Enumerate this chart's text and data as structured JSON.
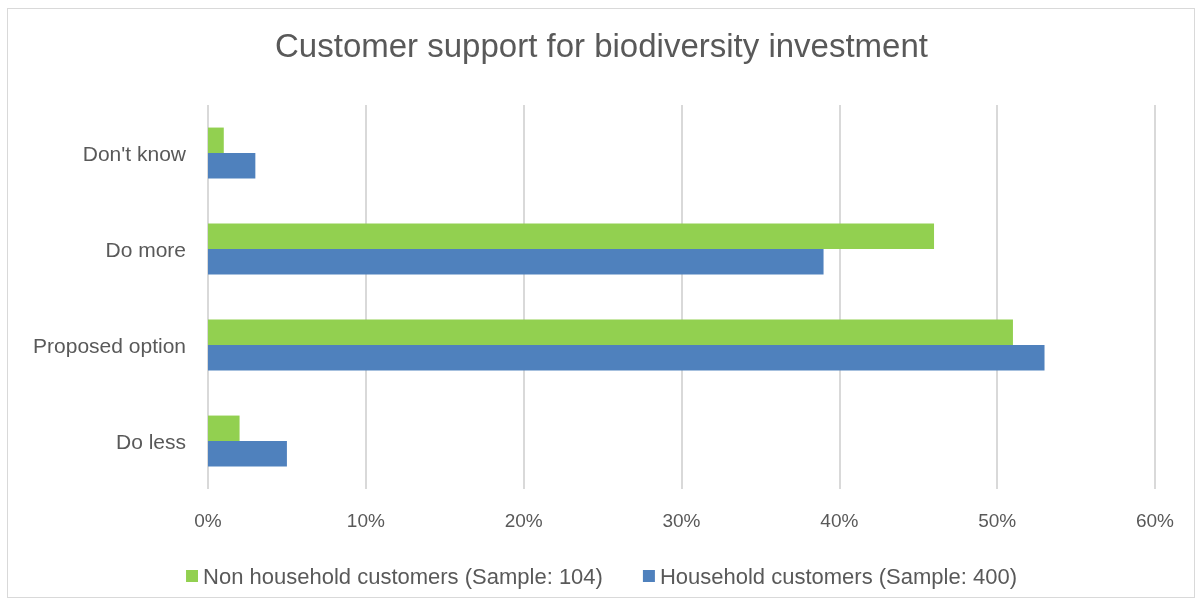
{
  "chart_data": {
    "type": "bar",
    "orientation": "horizontal",
    "title": "Customer support for biodiversity investment",
    "categories": [
      "Don't know",
      "Do more",
      "Proposed option",
      "Do less"
    ],
    "series": [
      {
        "name": "Non household customers (Sample: 104)",
        "color": "#92d050",
        "values": [
          1,
          46,
          51,
          2
        ]
      },
      {
        "name": "Household customers (Sample: 400)",
        "color": "#4f81bd",
        "values": [
          3,
          39,
          53,
          5
        ]
      }
    ],
    "xlim": [
      0,
      60
    ],
    "xticks": [
      {
        "value": 0,
        "label": "0%"
      },
      {
        "value": 10,
        "label": "10%"
      },
      {
        "value": 20,
        "label": "20%"
      },
      {
        "value": 30,
        "label": "30%"
      },
      {
        "value": 40,
        "label": "40%"
      },
      {
        "value": 50,
        "label": "50%"
      },
      {
        "value": 60,
        "label": "60%"
      }
    ],
    "grid": "x",
    "legend": "bottom"
  }
}
